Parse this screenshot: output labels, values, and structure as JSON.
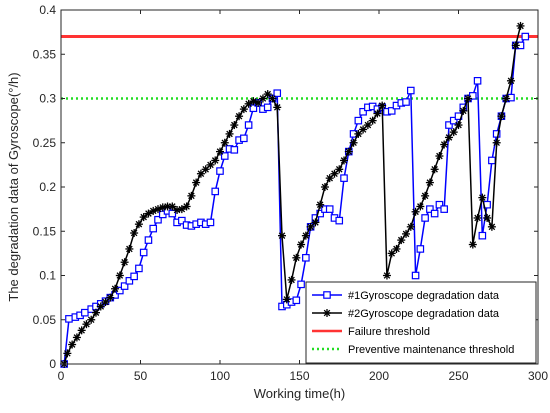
{
  "chart_data": {
    "type": "line",
    "xlabel": "Working time(h)",
    "ylabel": "The degradation data of Gyroscope(°/h)",
    "xlim": [
      0,
      300
    ],
    "ylim": [
      0,
      0.4
    ],
    "xticks": [
      0,
      50,
      100,
      150,
      200,
      250,
      300
    ],
    "yticks": [
      0,
      0.05,
      0.1,
      0.15,
      0.2,
      0.25,
      0.3,
      0.35,
      0.4
    ],
    "xtick_labels": [
      "0",
      "50",
      "100",
      "150",
      "200",
      "250",
      "300"
    ],
    "ytick_labels": [
      "0",
      "0.05",
      "0.1",
      "0.15",
      "0.2",
      "0.25",
      "0.3",
      "0.35",
      "0.4"
    ],
    "legend_position": "bottom-right",
    "grid": false,
    "series": [
      {
        "name": "#1Gyroscope degradation data",
        "color": "#0000ff",
        "marker": "square",
        "x": [
          2,
          5,
          9,
          12,
          15,
          19,
          22,
          25,
          28,
          31,
          34,
          37,
          40,
          43,
          46,
          49,
          52,
          55,
          58,
          61,
          64,
          67,
          70,
          73,
          76,
          79,
          82,
          85,
          88,
          91,
          94,
          97,
          100,
          103,
          106,
          109,
          112,
          115,
          118,
          121,
          124,
          127,
          130,
          133,
          136,
          139,
          142,
          145,
          148,
          151,
          154,
          157,
          160,
          163,
          166,
          169,
          172,
          175,
          178,
          181,
          184,
          187,
          190,
          193,
          196,
          199,
          202,
          205,
          208,
          211,
          214,
          217,
          220,
          223,
          226,
          229,
          232,
          235,
          238,
          241,
          244,
          247,
          250,
          253,
          256,
          259,
          262,
          265,
          268,
          271,
          274,
          277,
          280,
          283,
          286,
          289,
          292
        ],
        "y": [
          0.0,
          0.051,
          0.053,
          0.055,
          0.058,
          0.062,
          0.065,
          0.068,
          0.071,
          0.075,
          0.078,
          0.083,
          0.088,
          0.094,
          0.099,
          0.108,
          0.126,
          0.14,
          0.153,
          0.163,
          0.169,
          0.173,
          0.17,
          0.16,
          0.162,
          0.157,
          0.156,
          0.158,
          0.16,
          0.158,
          0.16,
          0.195,
          0.218,
          0.235,
          0.243,
          0.242,
          0.253,
          0.255,
          0.27,
          0.289,
          0.295,
          0.288,
          0.29,
          0.3,
          0.306,
          0.065,
          0.067,
          0.07,
          0.072,
          0.09,
          0.12,
          0.155,
          0.165,
          0.17,
          0.175,
          0.175,
          0.165,
          0.162,
          0.21,
          0.24,
          0.26,
          0.275,
          0.285,
          0.29,
          0.291,
          0.288,
          0.29,
          0.285,
          0.286,
          0.292,
          0.295,
          0.296,
          0.309,
          0.1,
          0.13,
          0.165,
          0.175,
          0.17,
          0.18,
          0.175,
          0.27,
          0.275,
          0.28,
          0.29,
          0.3,
          0.303,
          0.32,
          0.145,
          0.18,
          0.23,
          0.26,
          0.28,
          0.3,
          0.301,
          0.36,
          0.36,
          0.37
        ]
      },
      {
        "name": "#2Gyroscope degradation data",
        "color": "#000000",
        "marker": "star",
        "x": [
          2,
          4,
          7,
          10,
          13,
          16,
          19,
          22,
          25,
          28,
          31,
          34,
          37,
          40,
          43,
          46,
          49,
          52,
          55,
          58,
          61,
          64,
          67,
          70,
          73,
          76,
          79,
          82,
          85,
          88,
          91,
          94,
          97,
          100,
          103,
          106,
          109,
          112,
          115,
          118,
          121,
          124,
          127,
          130,
          133,
          136,
          139,
          142,
          145,
          148,
          151,
          154,
          157,
          160,
          163,
          166,
          169,
          172,
          175,
          178,
          181,
          184,
          187,
          190,
          193,
          196,
          199,
          202,
          205,
          208,
          211,
          214,
          217,
          220,
          223,
          226,
          229,
          232,
          235,
          238,
          241,
          244,
          247,
          250,
          253,
          256,
          259,
          262,
          265,
          268,
          271,
          274,
          277,
          280,
          283,
          286,
          289
        ],
        "y": [
          0.0,
          0.012,
          0.022,
          0.03,
          0.038,
          0.045,
          0.05,
          0.058,
          0.065,
          0.07,
          0.075,
          0.085,
          0.1,
          0.115,
          0.13,
          0.148,
          0.158,
          0.166,
          0.17,
          0.173,
          0.175,
          0.177,
          0.178,
          0.178,
          0.174,
          0.175,
          0.178,
          0.19,
          0.205,
          0.215,
          0.22,
          0.225,
          0.23,
          0.24,
          0.25,
          0.26,
          0.27,
          0.28,
          0.288,
          0.294,
          0.297,
          0.295,
          0.3,
          0.305,
          0.3,
          0.29,
          0.145,
          0.073,
          0.095,
          0.12,
          0.135,
          0.145,
          0.155,
          0.16,
          0.18,
          0.2,
          0.21,
          0.215,
          0.22,
          0.23,
          0.24,
          0.25,
          0.26,
          0.265,
          0.27,
          0.275,
          0.283,
          0.292,
          0.1,
          0.125,
          0.13,
          0.14,
          0.147,
          0.155,
          0.172,
          0.178,
          0.19,
          0.205,
          0.22,
          0.235,
          0.248,
          0.256,
          0.262,
          0.27,
          0.286,
          0.3,
          0.135,
          0.165,
          0.188,
          0.165,
          0.155,
          0.25,
          0.28,
          0.3,
          0.32,
          0.36,
          0.382
        ]
      }
    ],
    "hlines": [
      {
        "name": "Failure threshold",
        "y": 0.37,
        "color": "#ff3333",
        "style": "solid"
      },
      {
        "name": "Preventive maintenance threshold",
        "y": 0.3,
        "color": "#22dd22",
        "style": "dotted"
      }
    ]
  }
}
